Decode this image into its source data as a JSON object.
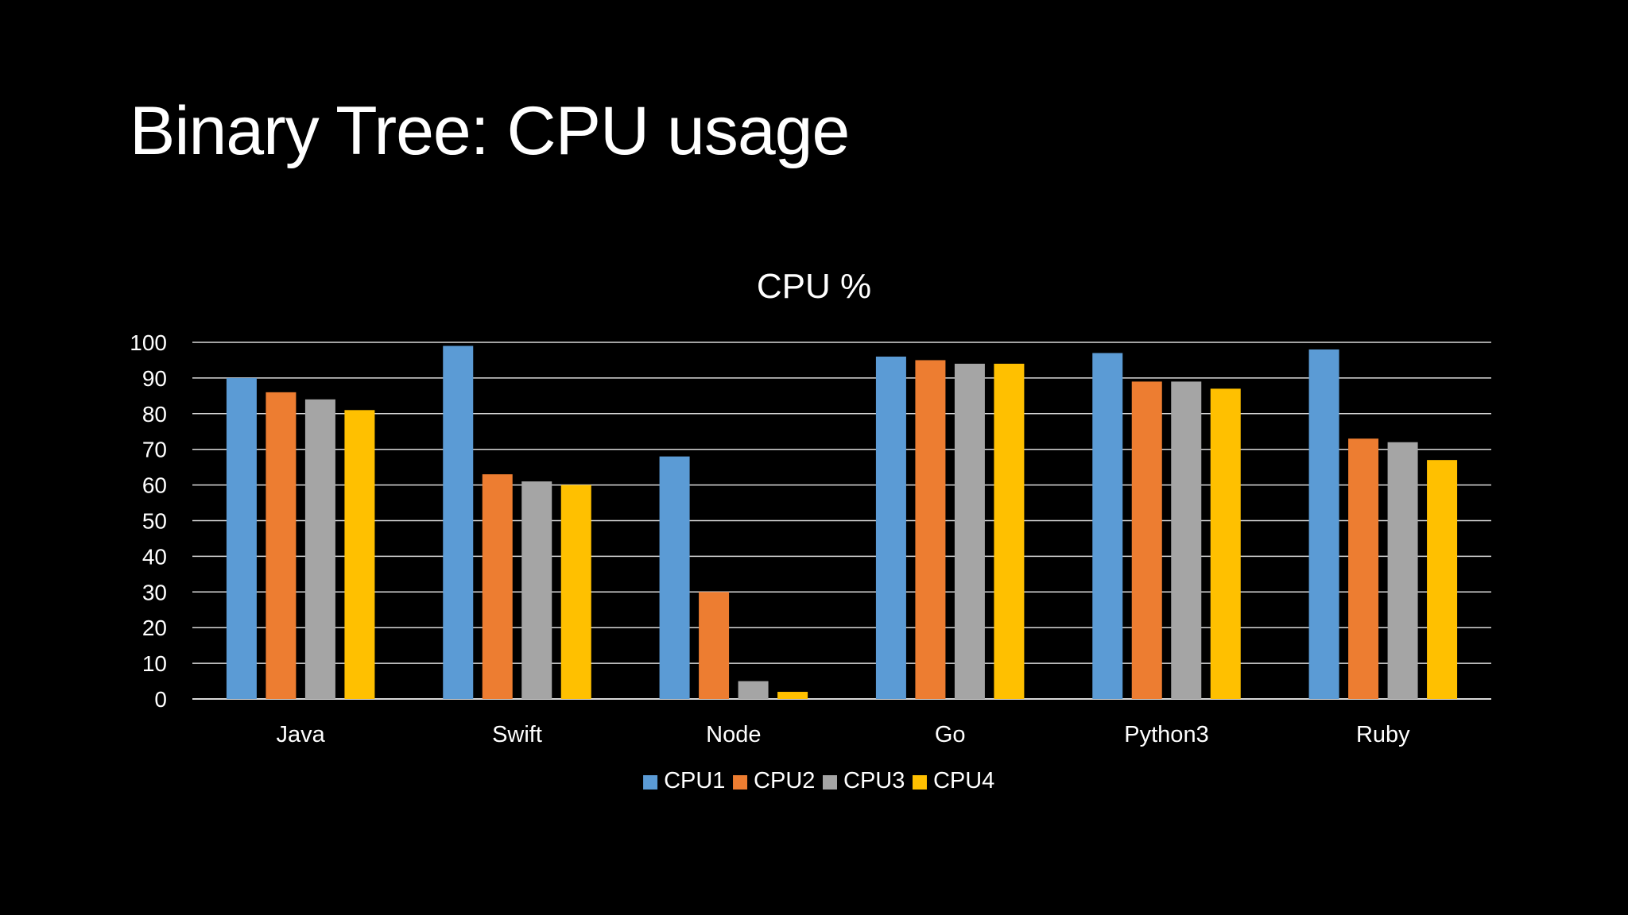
{
  "slide": {
    "title": "Binary Tree: CPU usage"
  },
  "chart_data": {
    "type": "bar",
    "title": "CPU %",
    "xlabel": "",
    "ylabel": "",
    "categories": [
      "Java",
      "Swift",
      "Node",
      "Go",
      "Python3",
      "Ruby"
    ],
    "series": [
      {
        "name": "CPU1",
        "color": "#5B9BD5",
        "values": [
          90,
          99,
          68,
          96,
          97,
          98
        ]
      },
      {
        "name": "CPU2",
        "color": "#ED7D31",
        "values": [
          86,
          63,
          30,
          95,
          89,
          73
        ]
      },
      {
        "name": "CPU3",
        "color": "#A5A5A5",
        "values": [
          84,
          61,
          5,
          94,
          89,
          72
        ]
      },
      {
        "name": "CPU4",
        "color": "#FFC000",
        "values": [
          81,
          60,
          2,
          94,
          87,
          67
        ]
      }
    ],
    "ylim": [
      0,
      100
    ],
    "yticks": [
      0,
      10,
      20,
      30,
      40,
      50,
      60,
      70,
      80,
      90,
      100
    ],
    "grid": true,
    "legend": "bottom-center"
  }
}
